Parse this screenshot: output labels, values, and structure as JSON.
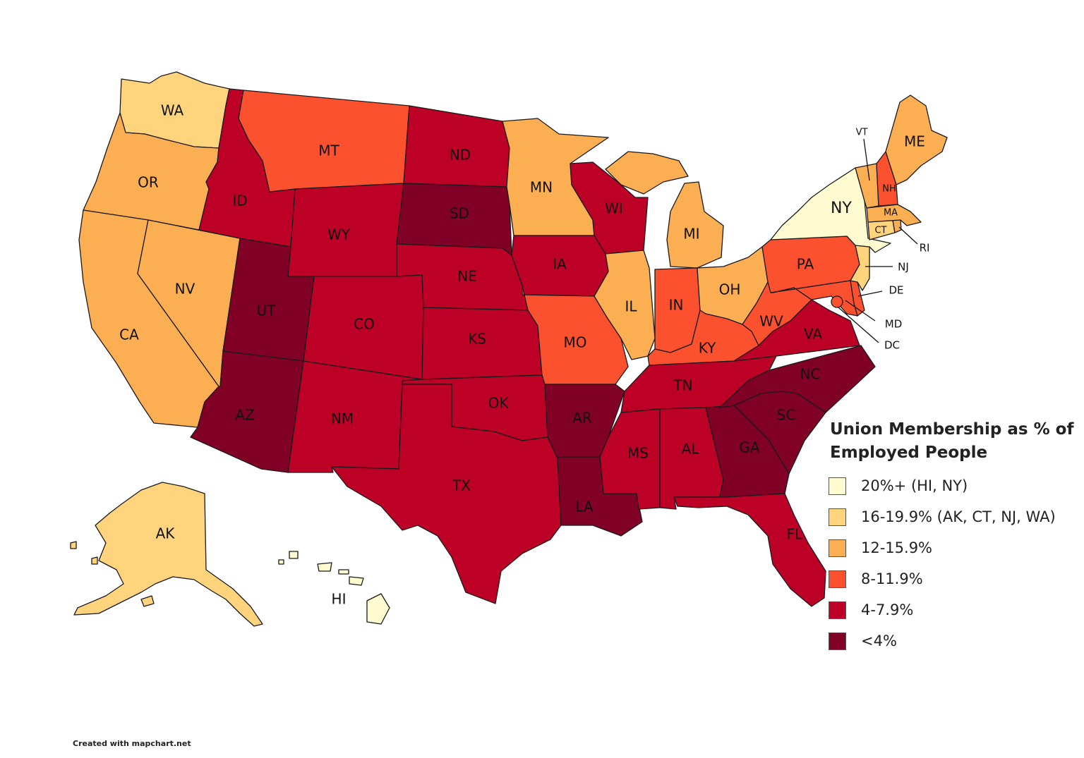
{
  "legend": {
    "title": "Union Membership as % of Employed People",
    "title_line1": "Union Membership as % of",
    "title_line2": "Employed People",
    "items": [
      {
        "label": "20%+ (HI, NY)",
        "color": "#fffbd0"
      },
      {
        "label": "16-19.9% (AK, CT, NJ, WA)",
        "color": "#ffd47c"
      },
      {
        "label": "12-15.9%",
        "color": "#fbae52"
      },
      {
        "label": "8-11.9%",
        "color": "#fc512f"
      },
      {
        "label": "4-7.9%",
        "color": "#bd0026"
      },
      {
        "label": "<4%",
        "color": "#800026"
      }
    ]
  },
  "states": {
    "WA": {
      "label": "WA",
      "color": "#ffd47c"
    },
    "OR": {
      "label": "OR",
      "color": "#fbae52"
    },
    "CA": {
      "label": "CA",
      "color": "#fbae52"
    },
    "NV": {
      "label": "NV",
      "color": "#fbae52"
    },
    "ID": {
      "label": "ID",
      "color": "#bd0026"
    },
    "MT": {
      "label": "MT",
      "color": "#fc512f"
    },
    "WY": {
      "label": "WY",
      "color": "#bd0026"
    },
    "UT": {
      "label": "UT",
      "color": "#800026"
    },
    "AZ": {
      "label": "AZ",
      "color": "#800026"
    },
    "CO": {
      "label": "CO",
      "color": "#bd0026"
    },
    "NM": {
      "label": "NM",
      "color": "#bd0026"
    },
    "ND": {
      "label": "ND",
      "color": "#bd0026"
    },
    "SD": {
      "label": "SD",
      "color": "#800026"
    },
    "NE": {
      "label": "NE",
      "color": "#bd0026"
    },
    "KS": {
      "label": "KS",
      "color": "#bd0026"
    },
    "OK": {
      "label": "OK",
      "color": "#bd0026"
    },
    "TX": {
      "label": "TX",
      "color": "#bd0026"
    },
    "MN": {
      "label": "MN",
      "color": "#fbae52"
    },
    "IA": {
      "label": "IA",
      "color": "#bd0026"
    },
    "MO": {
      "label": "MO",
      "color": "#fc512f"
    },
    "AR": {
      "label": "AR",
      "color": "#800026"
    },
    "LA": {
      "label": "LA",
      "color": "#800026"
    },
    "WI": {
      "label": "WI",
      "color": "#bd0026"
    },
    "IL": {
      "label": "IL",
      "color": "#fbae52"
    },
    "MI": {
      "label": "MI",
      "color": "#fbae52"
    },
    "IN": {
      "label": "IN",
      "color": "#fc512f"
    },
    "OH": {
      "label": "OH",
      "color": "#fbae52"
    },
    "KY": {
      "label": "KY",
      "color": "#fc512f"
    },
    "TN": {
      "label": "TN",
      "color": "#bd0026"
    },
    "MS": {
      "label": "MS",
      "color": "#bd0026"
    },
    "AL": {
      "label": "AL",
      "color": "#bd0026"
    },
    "GA": {
      "label": "GA",
      "color": "#800026"
    },
    "FL": {
      "label": "FL",
      "color": "#bd0026"
    },
    "SC": {
      "label": "SC",
      "color": "#800026"
    },
    "NC": {
      "label": "NC",
      "color": "#800026"
    },
    "VA": {
      "label": "VA",
      "color": "#bd0026"
    },
    "WV": {
      "label": "WV",
      "color": "#fc512f"
    },
    "PA": {
      "label": "PA",
      "color": "#fc512f"
    },
    "NY": {
      "label": "NY",
      "color": "#fffbd0"
    },
    "NJ": {
      "label": "NJ",
      "color": "#ffd47c"
    },
    "DE": {
      "label": "DE",
      "color": "#fc512f"
    },
    "MD": {
      "label": "MD",
      "color": "#fc512f"
    },
    "DC": {
      "label": "DC",
      "color": "#fc512f"
    },
    "CT": {
      "label": "CT",
      "color": "#ffd47c"
    },
    "RI": {
      "label": "RI",
      "color": "#fbae52"
    },
    "MA": {
      "label": "MA",
      "color": "#fbae52"
    },
    "VT": {
      "label": "VT",
      "color": "#fbae52"
    },
    "NH": {
      "label": "NH",
      "color": "#fc512f"
    },
    "ME": {
      "label": "ME",
      "color": "#fbae52"
    },
    "AK": {
      "label": "AK",
      "color": "#ffd47c"
    },
    "HI": {
      "label": "HI",
      "color": "#fffbd0"
    }
  },
  "credit": "Created with mapchart.net"
}
